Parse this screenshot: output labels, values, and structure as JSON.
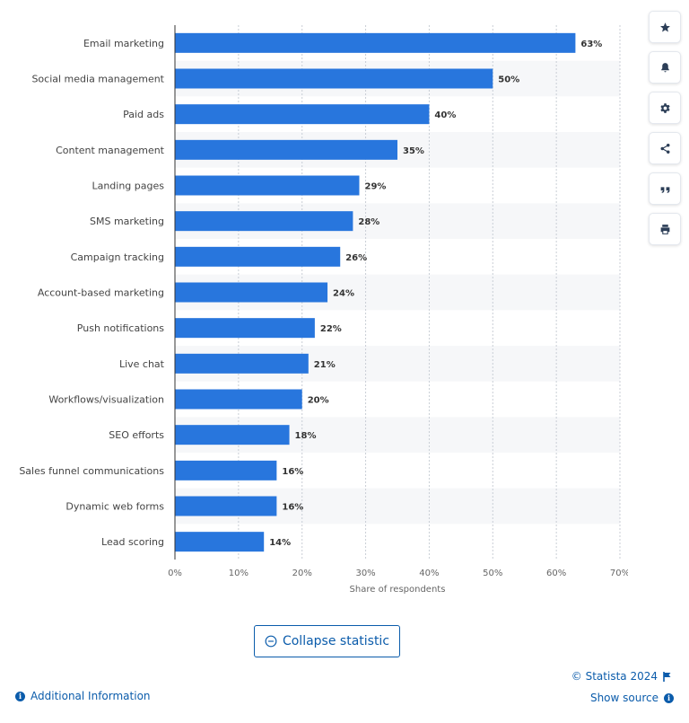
{
  "chart_data": {
    "type": "bar",
    "orientation": "horizontal",
    "categories": [
      "Email marketing",
      "Social media management",
      "Paid ads",
      "Content management",
      "Landing pages",
      "SMS marketing",
      "Campaign tracking",
      "Account-based marketing",
      "Push notifications",
      "Live chat",
      "Workflows/visualization",
      "SEO efforts",
      "Sales funnel communications",
      "Dynamic web forms",
      "Lead scoring"
    ],
    "values": [
      63,
      50,
      40,
      35,
      29,
      28,
      26,
      24,
      22,
      21,
      20,
      18,
      16,
      16,
      14
    ],
    "data_labels": [
      "63%",
      "50%",
      "40%",
      "35%",
      "29%",
      "28%",
      "26%",
      "24%",
      "22%",
      "21%",
      "20%",
      "18%",
      "16%",
      "16%",
      "14%"
    ],
    "xlabel": "Share of respondents",
    "xlim": [
      0,
      70
    ],
    "xticks": [
      "0%",
      "10%",
      "20%",
      "30%",
      "40%",
      "50%",
      "60%",
      "70%"
    ],
    "grid": true,
    "bar_color": "#2876dd",
    "band_color": "#f6f7f9"
  },
  "toolbar": {
    "buttons": [
      {
        "icon": "star-icon",
        "name": "favorite-button"
      },
      {
        "icon": "bell-icon",
        "name": "notification-button"
      },
      {
        "icon": "gear-icon",
        "name": "settings-button"
      },
      {
        "icon": "share-icon",
        "name": "share-button"
      },
      {
        "icon": "quote-icon",
        "name": "cite-button"
      },
      {
        "icon": "print-icon",
        "name": "print-button"
      }
    ]
  },
  "footer": {
    "collapse_label": "Collapse statistic",
    "additional_info": "Additional Information",
    "copyright": "© Statista 2024",
    "show_source": "Show source"
  },
  "colors": {
    "accent": "#0b5cab",
    "icon": "#2c3e57"
  }
}
